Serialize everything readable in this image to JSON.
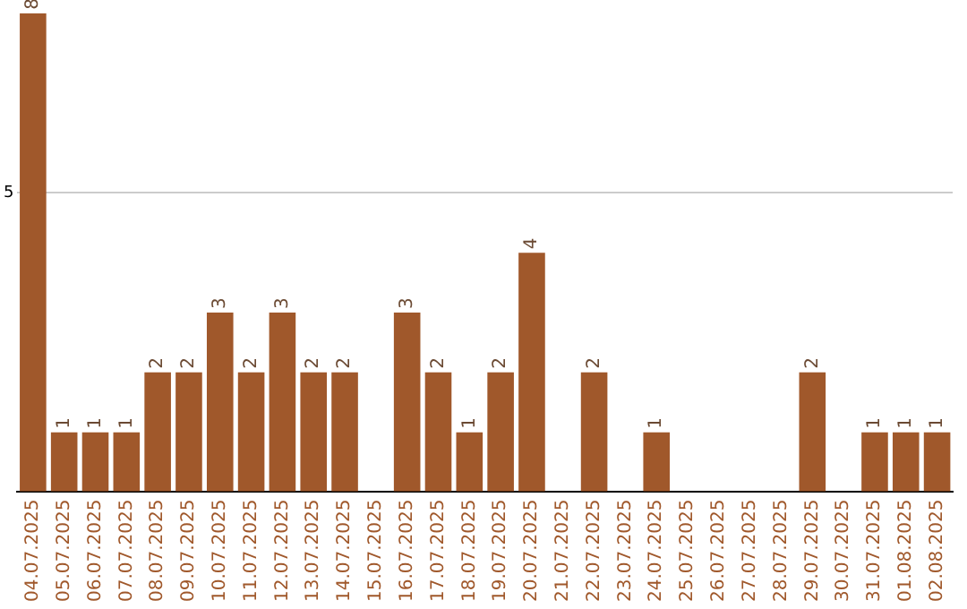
{
  "chart_data": {
    "type": "bar",
    "categories": [
      "04.07.2025",
      "05.07.2025",
      "06.07.2025",
      "07.07.2025",
      "08.07.2025",
      "09.07.2025",
      "10.07.2025",
      "11.07.2025",
      "12.07.2025",
      "13.07.2025",
      "14.07.2025",
      "15.07.2025",
      "16.07.2025",
      "17.07.2025",
      "18.07.2025",
      "19.07.2025",
      "20.07.2025",
      "21.07.2025",
      "22.07.2025",
      "23.07.2025",
      "24.07.2025",
      "25.07.2025",
      "26.07.2025",
      "27.07.2025",
      "28.07.2025",
      "29.07.2025",
      "30.07.2025",
      "31.07.2025",
      "01.08.2025",
      "02.08.2025"
    ],
    "values": [
      8,
      1,
      1,
      1,
      2,
      2,
      3,
      2,
      3,
      2,
      2,
      0,
      3,
      2,
      1,
      2,
      4,
      0,
      2,
      0,
      1,
      0,
      0,
      0,
      0,
      2,
      0,
      1,
      1,
      1
    ],
    "value_labels": [
      "8",
      "1",
      "1",
      "1",
      "2",
      "2",
      "3",
      "2",
      "3",
      "2",
      "2",
      null,
      "3",
      "2",
      "1",
      "2",
      "4",
      null,
      "2",
      null,
      "1",
      null,
      null,
      null,
      null,
      "2",
      null,
      "1",
      "1",
      "1"
    ],
    "color": "#a0582b",
    "ylim": [
      0,
      8
    ],
    "yticks": [
      {
        "value": 0,
        "label": null
      },
      5
    ],
    "grid": "y"
  }
}
